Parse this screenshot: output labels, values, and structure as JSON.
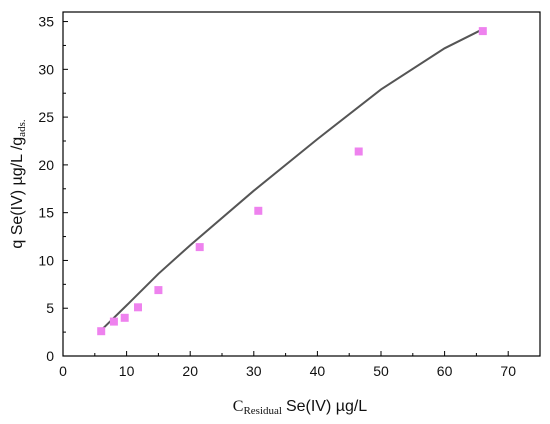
{
  "chart_data": {
    "type": "scatter",
    "xlabel": {
      "prefix": "C",
      "subscript": "Residual",
      "main": "Se(IV)  µg/L"
    },
    "ylabel": {
      "main": "q Se(IV) µg/L /g",
      "subscript": "ads."
    },
    "xlim": [
      0,
      75
    ],
    "ylim": [
      0,
      36
    ],
    "xticks": [
      "0",
      "10",
      "20",
      "30",
      "40",
      "50",
      "60",
      "70"
    ],
    "yticks": [
      "0",
      "5",
      "10",
      "15",
      "20",
      "25",
      "30",
      "35"
    ],
    "grid": false,
    "points": [
      {
        "x": 6.0,
        "y": 2.6
      },
      {
        "x": 8.0,
        "y": 3.6
      },
      {
        "x": 9.7,
        "y": 4.0
      },
      {
        "x": 11.8,
        "y": 5.1
      },
      {
        "x": 15.0,
        "y": 6.9
      },
      {
        "x": 21.5,
        "y": 11.4
      },
      {
        "x": 30.7,
        "y": 15.2
      },
      {
        "x": 46.5,
        "y": 21.4
      },
      {
        "x": 66.0,
        "y": 34.0
      }
    ],
    "fit_curve": {
      "x": [
        6,
        10,
        15,
        20,
        30,
        40,
        50,
        60,
        66
      ],
      "y": [
        2.7,
        5.3,
        8.6,
        11.6,
        17.3,
        22.7,
        27.9,
        32.2,
        34.2
      ]
    },
    "colors": {
      "marker": "#ee82ee",
      "curve": "#555555",
      "axis": "#000000"
    }
  }
}
